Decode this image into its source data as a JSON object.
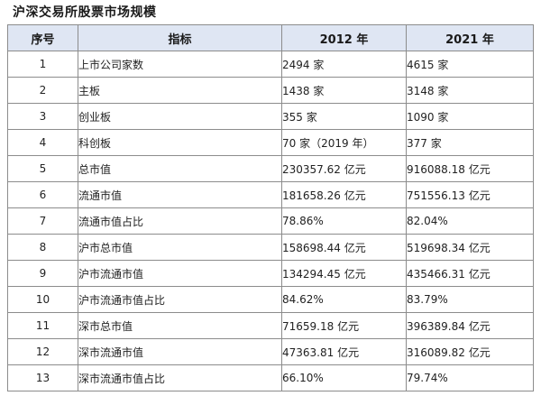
{
  "title": "沪深交易所股票市场规模",
  "headers": {
    "no": "序号",
    "name": "指标",
    "y2012": "2012 年",
    "y2021": "2021 年"
  },
  "rows": [
    {
      "no": "1",
      "name": "上市公司家数",
      "y2012": "2494 家",
      "y2021": "4615 家"
    },
    {
      "no": "2",
      "name": "主板",
      "y2012": "1438 家",
      "y2021": "3148 家"
    },
    {
      "no": "3",
      "name": "创业板",
      "y2012": "355 家",
      "y2021": "1090 家"
    },
    {
      "no": "4",
      "name": "科创板",
      "y2012": "70 家（2019 年）",
      "y2021": "377 家"
    },
    {
      "no": "5",
      "name": "总市值",
      "y2012": "230357.62 亿元",
      "y2021": "916088.18 亿元"
    },
    {
      "no": "6",
      "name": "流通市值",
      "y2012": "181658.26 亿元",
      "y2021": "751556.13 亿元"
    },
    {
      "no": "7",
      "name": "流通市值占比",
      "y2012": "78.86%",
      "y2021": "82.04%"
    },
    {
      "no": "8",
      "name": "沪市总市值",
      "y2012": "158698.44 亿元",
      "y2021": "519698.34 亿元"
    },
    {
      "no": "9",
      "name": "沪市流通市值",
      "y2012": "134294.45 亿元",
      "y2021": "435466.31 亿元"
    },
    {
      "no": "10",
      "name": "沪市流通市值占比",
      "y2012": "84.62%",
      "y2021": "83.79%"
    },
    {
      "no": "11",
      "name": "深市总市值",
      "y2012": "71659.18 亿元",
      "y2021": "396389.84 亿元"
    },
    {
      "no": "12",
      "name": "深市流通市值",
      "y2012": "47363.81 亿元",
      "y2021": "316089.82 亿元"
    },
    {
      "no": "13",
      "name": "深市流通市值占比",
      "y2012": "66.10%",
      "y2021": "79.74%"
    }
  ]
}
